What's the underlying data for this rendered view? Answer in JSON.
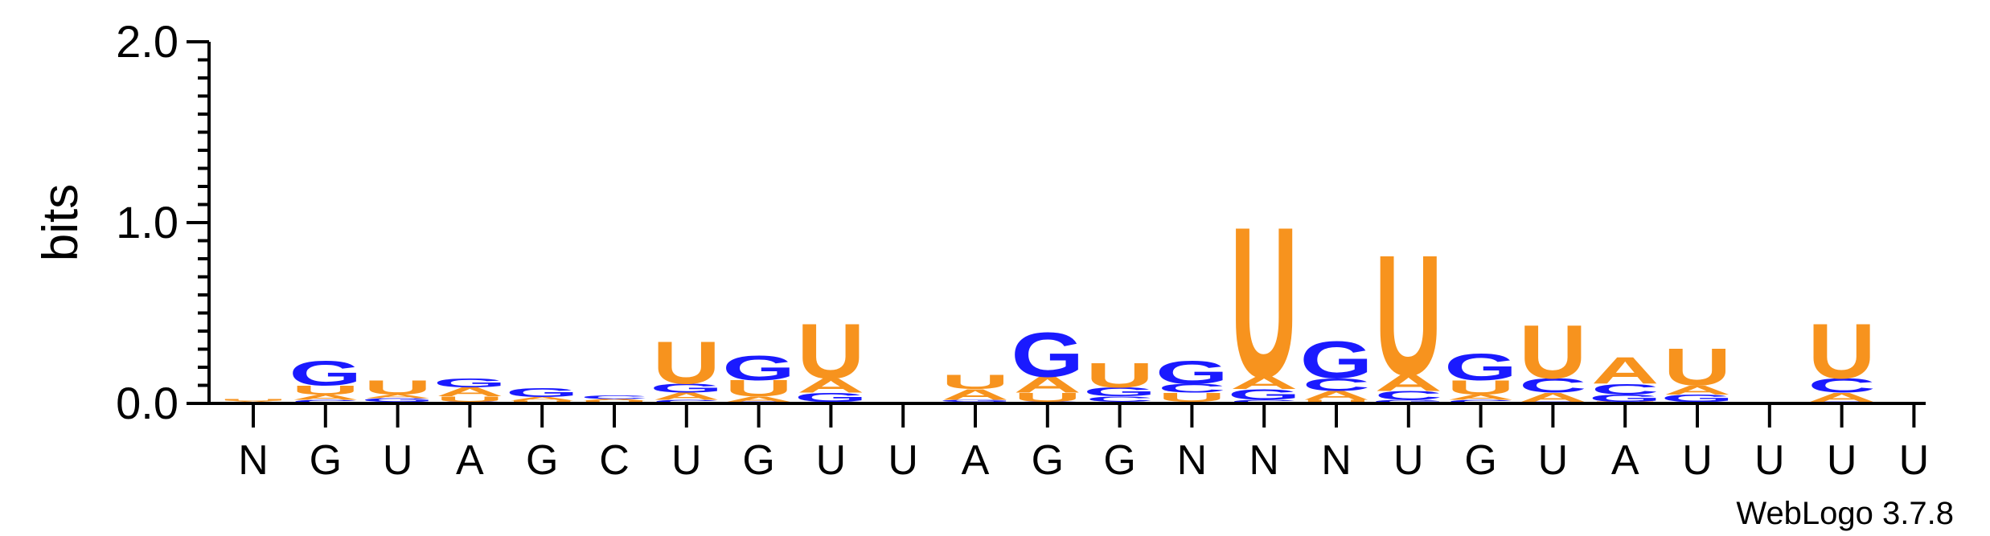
{
  "chart_data": {
    "type": "sequence-logo",
    "ylabel": "bits",
    "ylim": [
      0,
      2.0
    ],
    "yticks": [
      "0.0",
      "1.0",
      "2.0"
    ],
    "credit": "WebLogo 3.7.8",
    "colors": {
      "U": "#f7931e",
      "A": "#f7931e",
      "G": "#1a1aff",
      "C": "#1a1aff"
    },
    "positions": [
      {
        "label": "N",
        "stack": [
          {
            "letter": "C",
            "bits": 0.005
          },
          {
            "letter": "A",
            "bits": 0.008
          },
          {
            "letter": "U",
            "bits": 0.01
          }
        ]
      },
      {
        "label": "G",
        "stack": [
          {
            "letter": "C",
            "bits": 0.02
          },
          {
            "letter": "A",
            "bits": 0.03
          },
          {
            "letter": "U",
            "bits": 0.05
          },
          {
            "letter": "G",
            "bits": 0.14
          }
        ]
      },
      {
        "label": "U",
        "stack": [
          {
            "letter": "C",
            "bits": 0.01
          },
          {
            "letter": "G",
            "bits": 0.02
          },
          {
            "letter": "A",
            "bits": 0.02
          },
          {
            "letter": "U",
            "bits": 0.08
          }
        ]
      },
      {
        "label": "A",
        "stack": [
          {
            "letter": "C",
            "bits": 0.01
          },
          {
            "letter": "U",
            "bits": 0.03
          },
          {
            "letter": "A",
            "bits": 0.05
          },
          {
            "letter": "G",
            "bits": 0.05
          }
        ]
      },
      {
        "label": "G",
        "stack": [
          {
            "letter": "C",
            "bits": 0.005
          },
          {
            "letter": "U",
            "bits": 0.01
          },
          {
            "letter": "A",
            "bits": 0.02
          },
          {
            "letter": "G",
            "bits": 0.05
          }
        ]
      },
      {
        "label": "C",
        "stack": [
          {
            "letter": "G",
            "bits": 0.005
          },
          {
            "letter": "U",
            "bits": 0.01
          },
          {
            "letter": "A",
            "bits": 0.01
          },
          {
            "letter": "C",
            "bits": 0.02
          }
        ]
      },
      {
        "label": "U",
        "stack": [
          {
            "letter": "C",
            "bits": 0.02
          },
          {
            "letter": "A",
            "bits": 0.04
          },
          {
            "letter": "G",
            "bits": 0.05
          },
          {
            "letter": "U",
            "bits": 0.24
          }
        ]
      },
      {
        "label": "G",
        "stack": [
          {
            "letter": "C",
            "bits": 0.01
          },
          {
            "letter": "A",
            "bits": 0.03
          },
          {
            "letter": "U",
            "bits": 0.09
          },
          {
            "letter": "G",
            "bits": 0.14
          }
        ]
      },
      {
        "label": "U",
        "stack": [
          {
            "letter": "C",
            "bits": 0.01
          },
          {
            "letter": "G",
            "bits": 0.05
          },
          {
            "letter": "A",
            "bits": 0.08
          },
          {
            "letter": "U",
            "bits": 0.31
          }
        ]
      },
      {
        "label": "U",
        "stack": []
      },
      {
        "label": "A",
        "stack": [
          {
            "letter": "C",
            "bits": 0.01
          },
          {
            "letter": "G",
            "bits": 0.01
          },
          {
            "letter": "A",
            "bits": 0.06
          },
          {
            "letter": "U",
            "bits": 0.08
          }
        ]
      },
      {
        "label": "G",
        "stack": [
          {
            "letter": "C",
            "bits": 0.01
          },
          {
            "letter": "U",
            "bits": 0.05
          },
          {
            "letter": "A",
            "bits": 0.09
          },
          {
            "letter": "G",
            "bits": 0.25
          }
        ]
      },
      {
        "label": "G",
        "stack": [
          {
            "letter": "A",
            "bits": 0.01
          },
          {
            "letter": "C",
            "bits": 0.03
          },
          {
            "letter": "G",
            "bits": 0.05
          },
          {
            "letter": "U",
            "bits": 0.14
          }
        ]
      },
      {
        "label": "N",
        "stack": [
          {
            "letter": "A",
            "bits": 0.01
          },
          {
            "letter": "U",
            "bits": 0.05
          },
          {
            "letter": "C",
            "bits": 0.05
          },
          {
            "letter": "G",
            "bits": 0.13
          }
        ]
      },
      {
        "label": "N",
        "stack": [
          {
            "letter": "C",
            "bits": 0.02
          },
          {
            "letter": "G",
            "bits": 0.06
          },
          {
            "letter": "A",
            "bits": 0.07
          },
          {
            "letter": "U",
            "bits": 0.85
          }
        ]
      },
      {
        "label": "N",
        "stack": [
          {
            "letter": "U",
            "bits": 0.02
          },
          {
            "letter": "A",
            "bits": 0.05
          },
          {
            "letter": "C",
            "bits": 0.07
          },
          {
            "letter": "G",
            "bits": 0.21
          }
        ]
      },
      {
        "label": "U",
        "stack": [
          {
            "letter": "G",
            "bits": 0.02
          },
          {
            "letter": "C",
            "bits": 0.05
          },
          {
            "letter": "A",
            "bits": 0.09
          },
          {
            "letter": "U",
            "bits": 0.68
          }
        ]
      },
      {
        "label": "G",
        "stack": [
          {
            "letter": "C",
            "bits": 0.02
          },
          {
            "letter": "A",
            "bits": 0.03
          },
          {
            "letter": "U",
            "bits": 0.08
          },
          {
            "letter": "G",
            "bits": 0.15
          }
        ]
      },
      {
        "label": "U",
        "stack": [
          {
            "letter": "G",
            "bits": 0.01
          },
          {
            "letter": "A",
            "bits": 0.05
          },
          {
            "letter": "C",
            "bits": 0.08
          },
          {
            "letter": "U",
            "bits": 0.3
          }
        ]
      },
      {
        "label": "A",
        "stack": [
          {
            "letter": "U",
            "bits": 0.01
          },
          {
            "letter": "G",
            "bits": 0.04
          },
          {
            "letter": "C",
            "bits": 0.06
          },
          {
            "letter": "A",
            "bits": 0.15
          }
        ]
      },
      {
        "label": "U",
        "stack": [
          {
            "letter": "C",
            "bits": 0.01
          },
          {
            "letter": "G",
            "bits": 0.04
          },
          {
            "letter": "A",
            "bits": 0.05
          },
          {
            "letter": "U",
            "bits": 0.21
          }
        ]
      },
      {
        "label": "U",
        "stack": []
      },
      {
        "label": "U",
        "stack": [
          {
            "letter": "G",
            "bits": 0.01
          },
          {
            "letter": "A",
            "bits": 0.05
          },
          {
            "letter": "C",
            "bits": 0.08
          },
          {
            "letter": "U",
            "bits": 0.31
          }
        ]
      },
      {
        "label": "U",
        "stack": []
      }
    ]
  }
}
